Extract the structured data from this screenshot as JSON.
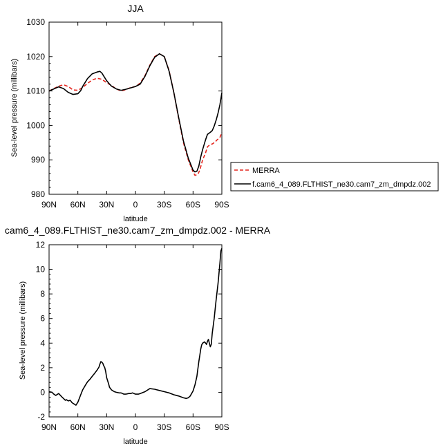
{
  "chart_data": [
    {
      "type": "line",
      "title": "JJA",
      "xlabel": "latitude",
      "ylabel": "Sea-level pressure (millibars)",
      "xlim": [
        -90,
        90
      ],
      "ylim": [
        980,
        1030
      ],
      "xticks": [
        "90N",
        "60N",
        "30N",
        "0",
        "30S",
        "60S",
        "90S"
      ],
      "yticks": [
        "980",
        "990",
        "1000",
        "1010",
        "1020",
        "1030"
      ],
      "legend": "outside-right",
      "series": [
        {
          "name": "MERRA",
          "color": "#e4231b",
          "style": "dashed",
          "x": [
            -90,
            -85,
            -80,
            -75,
            -70,
            -65,
            -60,
            -55,
            -50,
            -45,
            -40,
            -35,
            -30,
            -25,
            -20,
            -15,
            -10,
            -5,
            0,
            5,
            10,
            15,
            20,
            25,
            30,
            35,
            40,
            45,
            50,
            55,
            60,
            62,
            65,
            67,
            70,
            73,
            75,
            78,
            80,
            83,
            85,
            88,
            90
          ],
          "y": [
            1010,
            1010.7,
            1011.4,
            1011.8,
            1011.3,
            1010.3,
            1010.2,
            1011.0,
            1012.2,
            1013.2,
            1013.7,
            1013.4,
            1012.4,
            1011.6,
            1010.6,
            1010.0,
            1010.4,
            1011.0,
            1011.3,
            1012.3,
            1014.5,
            1017.5,
            1020,
            1020.8,
            1020,
            1016,
            1009.5,
            1002,
            995,
            990,
            986.5,
            985.5,
            985.8,
            987,
            990,
            992,
            993.8,
            994.5,
            994.6,
            995.2,
            995.8,
            996.5,
            998
          ]
        },
        {
          "name": "f.cam6_4_089.FLTHIST_ne30.cam7_zm_dmpdz.002",
          "color": "#000000",
          "style": "solid",
          "x": [
            -90,
            -85,
            -80,
            -75,
            -70,
            -65,
            -60,
            -57,
            -55,
            -50,
            -45,
            -40,
            -37,
            -35,
            -33,
            -30,
            -27,
            -25,
            -20,
            -15,
            -10,
            -5,
            0,
            5,
            10,
            15,
            20,
            25,
            30,
            35,
            40,
            45,
            50,
            55,
            60,
            62,
            64,
            66,
            68,
            70,
            73,
            75,
            78,
            80,
            82,
            84,
            86,
            88,
            90
          ],
          "y": [
            1010,
            1010.6,
            1011.2,
            1010.7,
            1009.6,
            1009.0,
            1009.2,
            1010.1,
            1011.3,
            1013.6,
            1015.0,
            1015.5,
            1015.7,
            1015.2,
            1014.3,
            1013.0,
            1012.0,
            1011.4,
            1010.6,
            1010.2,
            1010.5,
            1010.9,
            1011.3,
            1012.0,
            1014.3,
            1017.3,
            1019.8,
            1020.8,
            1020,
            1015.8,
            1009.5,
            1002.3,
            995.5,
            990.5,
            987.0,
            986.5,
            986.7,
            988.2,
            990.8,
            993.0,
            995.8,
            997.4,
            998.0,
            998.5,
            999.8,
            1001.5,
            1003.5,
            1006.0,
            1009.5
          ]
        }
      ]
    },
    {
      "type": "line",
      "title": "cam6_4_089.FLTHIST_ne30.cam7_zm_dmpdz.002 - MERRA",
      "xlabel": "latitude",
      "ylabel": "Sea-level pressure (millibars)",
      "xlim": [
        -90,
        90
      ],
      "ylim": [
        -2,
        12
      ],
      "xticks": [
        "90N",
        "60N",
        "30N",
        "0",
        "30S",
        "60S",
        "90S"
      ],
      "yticks": [
        "-2",
        "0",
        "2",
        "4",
        "6",
        "8",
        "10",
        "12"
      ],
      "series": [
        {
          "color": "#000000",
          "style": "solid",
          "x": [
            -90,
            -87,
            -85,
            -83,
            -80,
            -77,
            -75,
            -73,
            -72,
            -70,
            -68,
            -66,
            -64,
            -62,
            -60,
            -57,
            -55,
            -52,
            -50,
            -47,
            -45,
            -43,
            -40,
            -38,
            -37,
            -36,
            -35,
            -34,
            -33,
            -32,
            -31,
            -30,
            -28,
            -27,
            -25,
            -22,
            -20,
            -17,
            -15,
            -12,
            -10,
            -7,
            -5,
            -3,
            0,
            3,
            5,
            10,
            15,
            20,
            25,
            30,
            35,
            40,
            45,
            50,
            53,
            55,
            57,
            60,
            62,
            64,
            66,
            67,
            68,
            69,
            70,
            72,
            73,
            74,
            75,
            76,
            77,
            78,
            79,
            80,
            82,
            84,
            86,
            88,
            89,
            90
          ],
          "y": [
            0.05,
            0.0,
            -0.15,
            -0.25,
            -0.1,
            -0.35,
            -0.5,
            -0.65,
            -0.6,
            -0.7,
            -0.65,
            -0.85,
            -0.95,
            -1.05,
            -0.8,
            -0.2,
            0.2,
            0.6,
            0.85,
            1.1,
            1.3,
            1.5,
            1.8,
            2.05,
            2.3,
            2.5,
            2.45,
            2.35,
            2.15,
            2.0,
            1.7,
            1.2,
            0.7,
            0.4,
            0.2,
            0.05,
            0.0,
            -0.05,
            -0.05,
            -0.15,
            -0.15,
            -0.1,
            -0.1,
            -0.05,
            -0.15,
            -0.15,
            -0.1,
            0.05,
            0.3,
            0.25,
            0.15,
            0.05,
            -0.05,
            -0.2,
            -0.3,
            -0.45,
            -0.5,
            -0.45,
            -0.3,
            0.1,
            0.6,
            1.3,
            2.5,
            3.0,
            3.5,
            3.85,
            4.0,
            4.1,
            4.0,
            3.9,
            4.15,
            4.3,
            4.0,
            3.7,
            3.9,
            4.8,
            6.0,
            7.5,
            8.8,
            10.5,
            11.5,
            11.7
          ]
        }
      ]
    }
  ]
}
